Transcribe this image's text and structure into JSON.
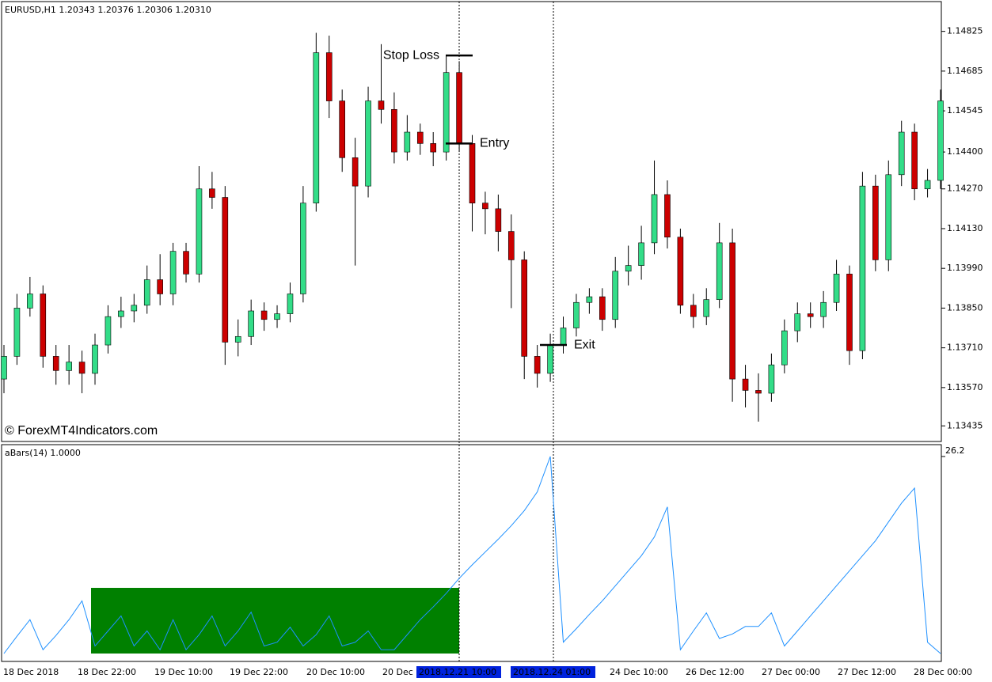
{
  "chart_data": [
    {
      "type": "candlestick",
      "title": "EURUSD,H1  1.20343 1.20376 1.20306 1.20310",
      "source": "© ForexMT4Indicators.com",
      "colors": {
        "up": "#33dd88",
        "down": "#cc0000",
        "wick": "#000000"
      },
      "ylim": [
        1.1338,
        1.1493
      ],
      "yticks": [
        {
          "value": 1.14825,
          "label": "1.14825"
        },
        {
          "value": 1.14685,
          "label": "1.14685"
        },
        {
          "value": 1.14545,
          "label": "1.14545"
        },
        {
          "value": 1.144,
          "label": "1.14400"
        },
        {
          "value": 1.1427,
          "label": "1.14270"
        },
        {
          "value": 1.1413,
          "label": "1.14130"
        },
        {
          "value": 1.1399,
          "label": "1.13990"
        },
        {
          "value": 1.1385,
          "label": "1.13850"
        },
        {
          "value": 1.1371,
          "label": "1.13710"
        },
        {
          "value": 1.1357,
          "label": "1.13570"
        },
        {
          "value": 1.13435,
          "label": "1.13435"
        }
      ],
      "xlabels": [
        "18 Dec 2018",
        "18 Dec 22:00",
        "19 Dec 10:00",
        "19 Dec 22:00",
        "20 Dec 10:00",
        "20 Dec",
        "2018.12.21 10:00",
        "2018.12.24 01:00",
        "24 Dec 10:00",
        "26 Dec 12:00",
        "27 Dec 00:00",
        "27 Dec 12:00",
        "28 Dec 00:00"
      ],
      "annotations": [
        {
          "text": "Stop Loss",
          "price": 1.1474
        },
        {
          "text": "Entry",
          "price": 1.1443
        },
        {
          "text": "Exit",
          "price": 1.1372
        }
      ],
      "candles": [
        [
          1.136,
          1.1372,
          1.1355,
          1.1368
        ],
        [
          1.1368,
          1.139,
          1.1365,
          1.1385
        ],
        [
          1.1385,
          1.1396,
          1.1382,
          1.139
        ],
        [
          1.139,
          1.1393,
          1.1364,
          1.1368
        ],
        [
          1.1368,
          1.1372,
          1.1358,
          1.1363
        ],
        [
          1.1363,
          1.1372,
          1.1358,
          1.1366
        ],
        [
          1.1366,
          1.137,
          1.1355,
          1.1362
        ],
        [
          1.1362,
          1.1376,
          1.1358,
          1.1372
        ],
        [
          1.1372,
          1.1386,
          1.1369,
          1.1382
        ],
        [
          1.1382,
          1.1389,
          1.1378,
          1.1384
        ],
        [
          1.1384,
          1.139,
          1.138,
          1.1386
        ],
        [
          1.1386,
          1.14,
          1.1383,
          1.1395
        ],
        [
          1.1395,
          1.1404,
          1.1386,
          1.139
        ],
        [
          1.139,
          1.1408,
          1.1386,
          1.1405
        ],
        [
          1.1405,
          1.1408,
          1.1394,
          1.1397
        ],
        [
          1.1397,
          1.1435,
          1.1394,
          1.1427
        ],
        [
          1.1427,
          1.1433,
          1.142,
          1.1424
        ],
        [
          1.1424,
          1.1428,
          1.1365,
          1.1373
        ],
        [
          1.1373,
          1.1381,
          1.1368,
          1.1375
        ],
        [
          1.1375,
          1.1388,
          1.1372,
          1.1384
        ],
        [
          1.1384,
          1.1387,
          1.1377,
          1.1381
        ],
        [
          1.1381,
          1.1386,
          1.1378,
          1.1383
        ],
        [
          1.1383,
          1.1394,
          1.138,
          1.139
        ],
        [
          1.139,
          1.1428,
          1.1387,
          1.1422
        ],
        [
          1.1422,
          1.1482,
          1.1419,
          1.1475
        ],
        [
          1.1475,
          1.1481,
          1.1452,
          1.1458
        ],
        [
          1.1458,
          1.1462,
          1.1433,
          1.1438
        ],
        [
          1.1438,
          1.1445,
          1.14,
          1.1428
        ],
        [
          1.1428,
          1.1463,
          1.1424,
          1.1458
        ],
        [
          1.1458,
          1.1478,
          1.145,
          1.1455
        ],
        [
          1.1455,
          1.1461,
          1.1436,
          1.144
        ],
        [
          1.144,
          1.1453,
          1.1437,
          1.1447
        ],
        [
          1.1447,
          1.145,
          1.1439,
          1.1443
        ],
        [
          1.1443,
          1.1447,
          1.1435,
          1.144
        ],
        [
          1.144,
          1.1474,
          1.1437,
          1.1468
        ],
        [
          1.1468,
          1.1472,
          1.144,
          1.1443
        ],
        [
          1.1443,
          1.1446,
          1.1412,
          1.1422
        ],
        [
          1.1422,
          1.1426,
          1.1411,
          1.142
        ],
        [
          1.142,
          1.1425,
          1.1405,
          1.1412
        ],
        [
          1.1412,
          1.1418,
          1.1385,
          1.1402
        ],
        [
          1.1402,
          1.1405,
          1.136,
          1.1368
        ],
        [
          1.1368,
          1.1372,
          1.1357,
          1.1362
        ],
        [
          1.1362,
          1.1376,
          1.1359,
          1.1372
        ],
        [
          1.1372,
          1.1382,
          1.1369,
          1.1378
        ],
        [
          1.1378,
          1.139,
          1.1375,
          1.1387
        ],
        [
          1.1387,
          1.1392,
          1.1383,
          1.1389
        ],
        [
          1.1389,
          1.1392,
          1.1377,
          1.1381
        ],
        [
          1.1381,
          1.1403,
          1.1378,
          1.1398
        ],
        [
          1.1398,
          1.1407,
          1.1393,
          1.14
        ],
        [
          1.14,
          1.1414,
          1.1395,
          1.1408
        ],
        [
          1.1408,
          1.1437,
          1.1404,
          1.1425
        ],
        [
          1.1425,
          1.143,
          1.1406,
          1.141
        ],
        [
          1.141,
          1.1413,
          1.1383,
          1.1386
        ],
        [
          1.1386,
          1.139,
          1.1378,
          1.1382
        ],
        [
          1.1382,
          1.1392,
          1.1379,
          1.1388
        ],
        [
          1.1388,
          1.1415,
          1.1385,
          1.1408
        ],
        [
          1.1408,
          1.1413,
          1.1352,
          1.136
        ],
        [
          1.136,
          1.1365,
          1.135,
          1.1356
        ],
        [
          1.1356,
          1.1362,
          1.1345,
          1.1355
        ],
        [
          1.1355,
          1.1369,
          1.1352,
          1.1365
        ],
        [
          1.1365,
          1.1381,
          1.1362,
          1.1377
        ],
        [
          1.1377,
          1.1387,
          1.1373,
          1.1383
        ],
        [
          1.1383,
          1.1387,
          1.1378,
          1.1382
        ],
        [
          1.1382,
          1.1391,
          1.1378,
          1.1387
        ],
        [
          1.1387,
          1.1402,
          1.1384,
          1.1397
        ],
        [
          1.1397,
          1.14,
          1.1365,
          1.137
        ],
        [
          1.137,
          1.1433,
          1.1367,
          1.1428
        ],
        [
          1.1428,
          1.1432,
          1.1398,
          1.1402
        ],
        [
          1.1402,
          1.1437,
          1.1398,
          1.1432
        ],
        [
          1.1432,
          1.1451,
          1.1428,
          1.1447
        ],
        [
          1.1447,
          1.145,
          1.1423,
          1.1427
        ],
        [
          1.1427,
          1.1434,
          1.1424,
          1.143
        ],
        [
          1.143,
          1.1462,
          1.1427,
          1.1458
        ]
      ]
    },
    {
      "type": "line",
      "title": "aBars(14) 1.0000",
      "color": "#1e90ff",
      "highlight_color": "#008000",
      "ylim": [
        0,
        26.2
      ],
      "yticks": [
        26.2
      ],
      "values": [
        0,
        2.3,
        4.5,
        0.5,
        2.4,
        4.5,
        7,
        1,
        3,
        5,
        1,
        3,
        0.5,
        4.5,
        0.5,
        2.5,
        5,
        1,
        3,
        5.5,
        1,
        1.5,
        3.5,
        1,
        2.5,
        5,
        1,
        1.5,
        3,
        0.5,
        0.5,
        2.5,
        4.5,
        6.2,
        8,
        10,
        11.8,
        13.5,
        15.2,
        17,
        19,
        21.5,
        26.2,
        1.5,
        3.3,
        5.2,
        7,
        9,
        11,
        13,
        15.5,
        19.5,
        0.5,
        3,
        5.4,
        2,
        2.6,
        3.6,
        3.6,
        5.4,
        1,
        3,
        5,
        7,
        9,
        11,
        13,
        15,
        17.5,
        20,
        22,
        1.5,
        0
      ]
    }
  ]
}
